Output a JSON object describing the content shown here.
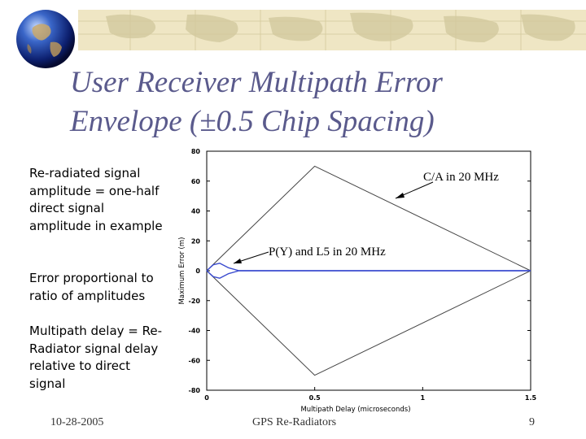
{
  "slide": {
    "title_line1": "User Receiver Multipath Error",
    "title_line2": "Envelope (±0.5 Chip Spacing)",
    "bullets": [
      "Re-radiated signal amplitude = one-half direct signal amplitude in example",
      "Error proportional to ratio of amplitudes",
      "Multipath delay = Re-Radiator signal delay relative to direct signal"
    ],
    "footer_date": "10-28-2005",
    "footer_center": "GPS Re-Radiators",
    "footer_page": "9"
  },
  "colors": {
    "title": "#5a5a8c",
    "banner": "#efe6c4",
    "pyl5_line": "#3b4ccf",
    "ca_line": "#444444"
  },
  "icons": [
    "globe-icon",
    "world-map-banner"
  ],
  "chart_data": {
    "type": "line",
    "title": "",
    "xlabel": "Multipath Delay (microseconds)",
    "ylabel": "Maximum Error (m)",
    "xlim": [
      0,
      1.5
    ],
    "ylim": [
      -80,
      80
    ],
    "x_ticks": [
      "0",
      "0.5",
      "1",
      "1.5"
    ],
    "y_ticks": [
      "80",
      "60",
      "40",
      "20",
      "0",
      "-20",
      "-40",
      "-60",
      "-80"
    ],
    "annotations": [
      "C/A in 20 MHz",
      "P(Y) and L5 in 20 MHz"
    ],
    "series": [
      {
        "x": [
          0,
          0.5,
          1.5
        ],
        "y": [
          0,
          70,
          0
        ]
      },
      {
        "x": [
          0,
          0.5,
          1.5
        ],
        "y": [
          0,
          -70,
          0
        ]
      },
      {
        "x": [
          0,
          0.03,
          0.06,
          0.1,
          0.15,
          1.5
        ],
        "y": [
          0,
          4,
          5,
          2,
          0,
          0
        ]
      },
      {
        "x": [
          0,
          0.03,
          0.06,
          0.1,
          0.15,
          1.5
        ],
        "y": [
          0,
          -4,
          -5,
          -2,
          0,
          0
        ]
      }
    ]
  }
}
